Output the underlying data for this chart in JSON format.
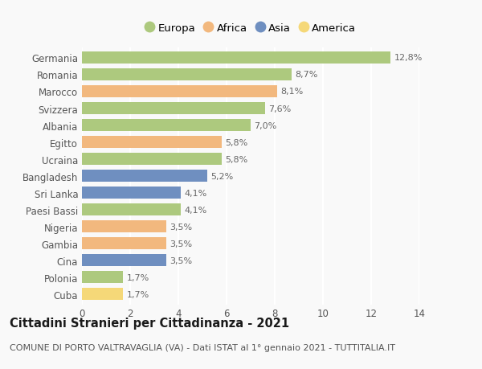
{
  "categories": [
    "Germania",
    "Romania",
    "Marocco",
    "Svizzera",
    "Albania",
    "Egitto",
    "Ucraina",
    "Bangladesh",
    "Sri Lanka",
    "Paesi Bassi",
    "Nigeria",
    "Gambia",
    "Cina",
    "Polonia",
    "Cuba"
  ],
  "values": [
    12.8,
    8.7,
    8.1,
    7.6,
    7.0,
    5.8,
    5.8,
    5.2,
    4.1,
    4.1,
    3.5,
    3.5,
    3.5,
    1.7,
    1.7
  ],
  "labels": [
    "12,8%",
    "8,7%",
    "8,1%",
    "7,6%",
    "7,0%",
    "5,8%",
    "5,8%",
    "5,2%",
    "4,1%",
    "4,1%",
    "3,5%",
    "3,5%",
    "3,5%",
    "1,7%",
    "1,7%"
  ],
  "continents": [
    "Europa",
    "Europa",
    "Africa",
    "Europa",
    "Europa",
    "Africa",
    "Europa",
    "Asia",
    "Asia",
    "Europa",
    "Africa",
    "Africa",
    "Asia",
    "Europa",
    "America"
  ],
  "colors": {
    "Europa": "#adc97e",
    "Africa": "#f2b87e",
    "Asia": "#6f8fc0",
    "America": "#f5d878"
  },
  "xlim": [
    0,
    14
  ],
  "xticks": [
    0,
    2,
    4,
    6,
    8,
    10,
    12,
    14
  ],
  "title": "Cittadini Stranieri per Cittadinanza - 2021",
  "subtitle": "COMUNE DI PORTO VALTRAVAGLIA (VA) - Dati ISTAT al 1° gennaio 2021 - TUTTITALIA.IT",
  "background_color": "#f9f9f9",
  "grid_color": "#ffffff",
  "bar_height": 0.72,
  "title_fontsize": 10.5,
  "subtitle_fontsize": 8.0,
  "tick_fontsize": 8.5,
  "label_fontsize": 8.0,
  "legend_fontsize": 9.5
}
